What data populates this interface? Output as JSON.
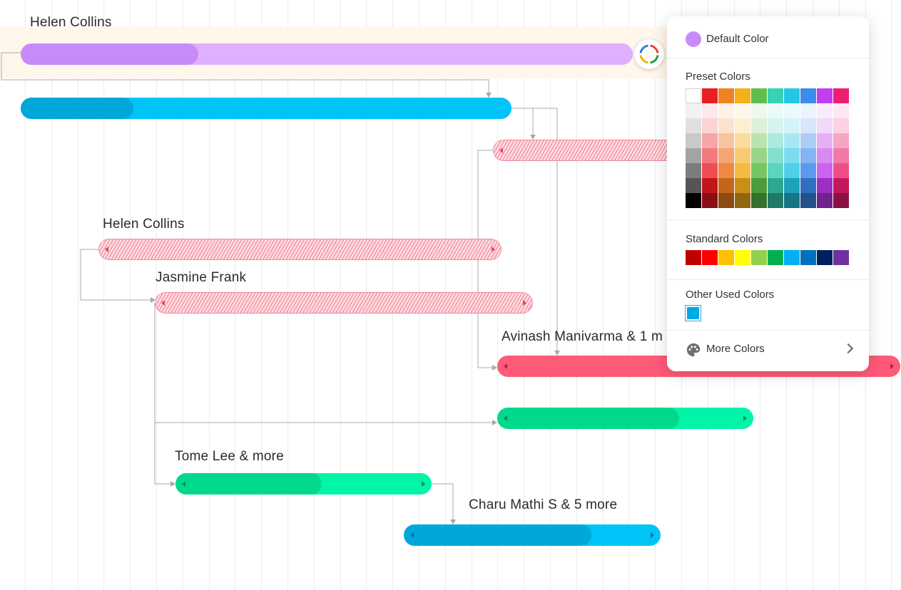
{
  "tasks": [
    {
      "label": "Helen Collins",
      "style": "solid",
      "color": "#e0b0ff",
      "progress_color": "#c98af9",
      "progress": 0.29
    },
    {
      "label": "",
      "style": "solid",
      "color": "#00c4f7",
      "progress_color": "#00a8da",
      "progress": 0.23
    },
    {
      "label": "",
      "style": "hatched",
      "color": "#f7a0ae",
      "progress_color": "#f7a0ae",
      "progress": 0
    },
    {
      "label": "Helen Collins",
      "style": "hatched",
      "color": "#f7a0ae",
      "progress_color": "#f7a0ae",
      "progress": 0
    },
    {
      "label": "Jasmine Frank",
      "style": "hatched",
      "color": "#f7a0ae",
      "progress_color": "#f7a0ae",
      "progress": 0
    },
    {
      "label": "Avinash Manivarma & 1 m",
      "style": "solid",
      "color": "#ff5a78",
      "progress_color": "#ff5a78",
      "progress": 0
    },
    {
      "label": "",
      "style": "solid",
      "color": "#00f5a8",
      "progress_color": "#00d98b",
      "progress": 0.71
    },
    {
      "label": "Tome Lee & more",
      "style": "solid",
      "color": "#00f5a8",
      "progress_color": "#00d98b",
      "progress": 0.57
    },
    {
      "label": "Charu Mathi S & 5 more",
      "style": "solid",
      "color": "#00c4f7",
      "progress_color": "#00a8da",
      "progress": 0.73
    }
  ],
  "color_picker": {
    "default_label": "Default Color",
    "default_color": "#c98af9",
    "preset_title": "Preset Colors",
    "preset_colors": [
      [
        "#ffffff",
        "#e81e25",
        "#ef8221",
        "#f3b11c",
        "#5fbf4e",
        "#38d1b4",
        "#24c8e3",
        "#3b8bea",
        "#c23df0",
        "#ee1e74"
      ],
      [
        "#f2f2f2",
        "#fde9ea",
        "#fdf1e8",
        "#fef7e8",
        "#eef8ec",
        "#ebfaf7",
        "#e9f9fc",
        "#ebf3fd",
        "#f9ecfd",
        "#fde8f0"
      ],
      [
        "#e0e0e0",
        "#fbd3d4",
        "#fbe2cf",
        "#fdeed0",
        "#dcf1d8",
        "#d6f4ef",
        "#d3f3f9",
        "#d6e6fb",
        "#f2d8fb",
        "#fbd2e1"
      ],
      [
        "#c9c9c9",
        "#f6a6a8",
        "#f7c4a0",
        "#fadca0",
        "#b9e3b0",
        "#ade9de",
        "#a7e7f3",
        "#adcdf6",
        "#e5b1f6",
        "#f6a5c3"
      ],
      [
        "#a3a3a3",
        "#f27a7d",
        "#f3a671",
        "#f7cb71",
        "#97d588",
        "#85dfce",
        "#7cdbee",
        "#84b4f2",
        "#d88af2",
        "#f279a5"
      ],
      [
        "#7c7c7c",
        "#ee4e52",
        "#f08843",
        "#f4ba42",
        "#74c762",
        "#5ed4bd",
        "#50cfe8",
        "#5b9bee",
        "#cb63ed",
        "#ee4d88"
      ],
      [
        "#555555",
        "#c0151b",
        "#c4661a",
        "#c98f16",
        "#4a9c3d",
        "#2ca891",
        "#1ca2b9",
        "#2f6fc0",
        "#9d2fc4",
        "#c3175f"
      ],
      [
        "#000000",
        "#8a0f14",
        "#8d4912",
        "#906610",
        "#35702c",
        "#207968",
        "#147585",
        "#22508a",
        "#71228d",
        "#8c1044"
      ]
    ],
    "standard_title": "Standard Colors",
    "standard_colors": [
      "#c00000",
      "#ff0000",
      "#ffc000",
      "#ffff00",
      "#92d050",
      "#00b050",
      "#00b0f0",
      "#0070c0",
      "#002060",
      "#7030a0"
    ],
    "other_title": "Other Used Colors",
    "other_colors": [
      "#00a8e8"
    ],
    "more_label": "More Colors"
  }
}
